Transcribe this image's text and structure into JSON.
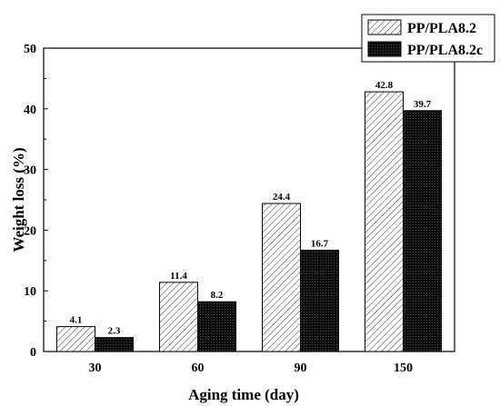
{
  "chart_data": {
    "type": "bar",
    "categories": [
      "30",
      "60",
      "90",
      "150"
    ],
    "series": [
      {
        "name": "PP/PLA8.2",
        "values": [
          4.1,
          11.4,
          24.4,
          42.8
        ],
        "labels": [
          "4.1",
          "11.4",
          "24.4",
          "42.8"
        ],
        "pattern": "diagonal-hatch",
        "color": "#ffffff"
      },
      {
        "name": "PP/PLA8.2c",
        "values": [
          2.3,
          8.2,
          16.7,
          39.7
        ],
        "labels": [
          "2.3",
          "8.2",
          "16.7",
          "39.7"
        ],
        "pattern": "dense-dots",
        "color": "#111111"
      }
    ],
    "xlabel": "Aging time (day)",
    "ylabel": "Weight loss (%)",
    "ylim": [
      0,
      50
    ],
    "yticks": [
      "0",
      "10",
      "20",
      "30",
      "40",
      "50"
    ],
    "grid": false,
    "legend": "top-right, boxed"
  }
}
